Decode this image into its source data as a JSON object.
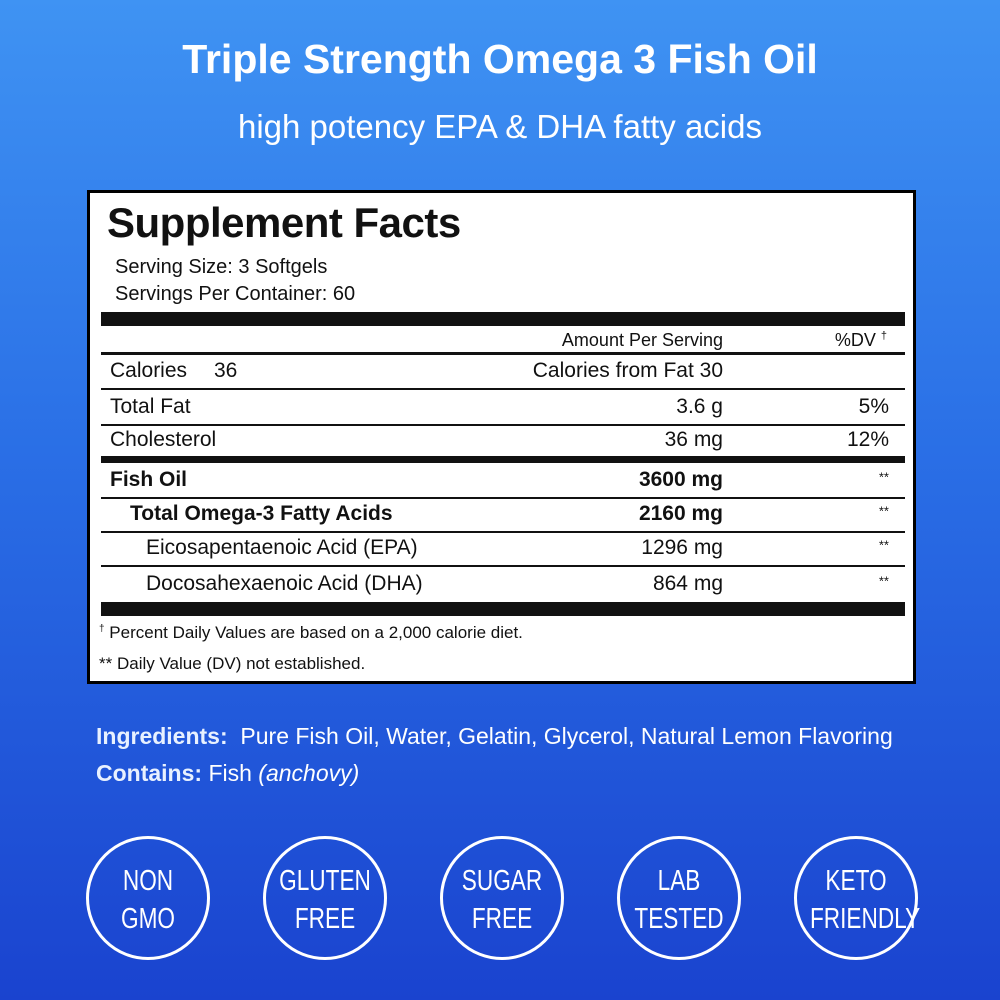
{
  "header": {
    "title": "Triple Strength Omega 3 Fish Oil",
    "subtitle": "high potency EPA & DHA fatty acids"
  },
  "facts": {
    "title": "Supplement Facts",
    "serving_size": "Serving Size: 3 Softgels",
    "servings_per_container": "Servings Per Container: 60",
    "amount_header": "Amount Per Serving",
    "dv_header": "%DV",
    "dv_mark": "†",
    "calories": {
      "label": "Calories",
      "value": "36",
      "from_fat": "Calories from Fat 30"
    },
    "rows": [
      {
        "name": "Total Fat",
        "amount": "3.6 g",
        "dv": "5%"
      },
      {
        "name": "Cholesterol",
        "amount": "36 mg",
        "dv": "12%"
      },
      {
        "name": "Fish Oil",
        "amount": "3600 mg",
        "dv": "**"
      },
      {
        "name": "Total Omega-3 Fatty Acids",
        "amount": "2160 mg",
        "dv": "**"
      },
      {
        "name": "Eicosapentaenoic Acid (EPA)",
        "amount": "1296 mg",
        "dv": "**"
      },
      {
        "name": "Docosahexaenoic Acid (DHA)",
        "amount": "864 mg",
        "dv": "**"
      }
    ],
    "footnotes": [
      {
        "mark": "†",
        "text": "Percent Daily Values are based on a 2,000 calorie diet."
      },
      {
        "mark": "**",
        "text": "Daily Value (DV) not established."
      }
    ]
  },
  "ingredients": {
    "label": "Ingredients:",
    "text": "Pure Fish Oil, Water, Gelatin, Glycerol, Natural Lemon Flavoring"
  },
  "contains": {
    "label": "Contains:",
    "text": "Fish",
    "note": "(anchovy)"
  },
  "badges": [
    [
      "NON",
      "GMO"
    ],
    [
      "GLUTEN",
      "FREE"
    ],
    [
      "SUGAR",
      "FREE"
    ],
    [
      "LAB",
      "TESTED"
    ],
    [
      "KETO",
      "FRIENDLY"
    ]
  ]
}
